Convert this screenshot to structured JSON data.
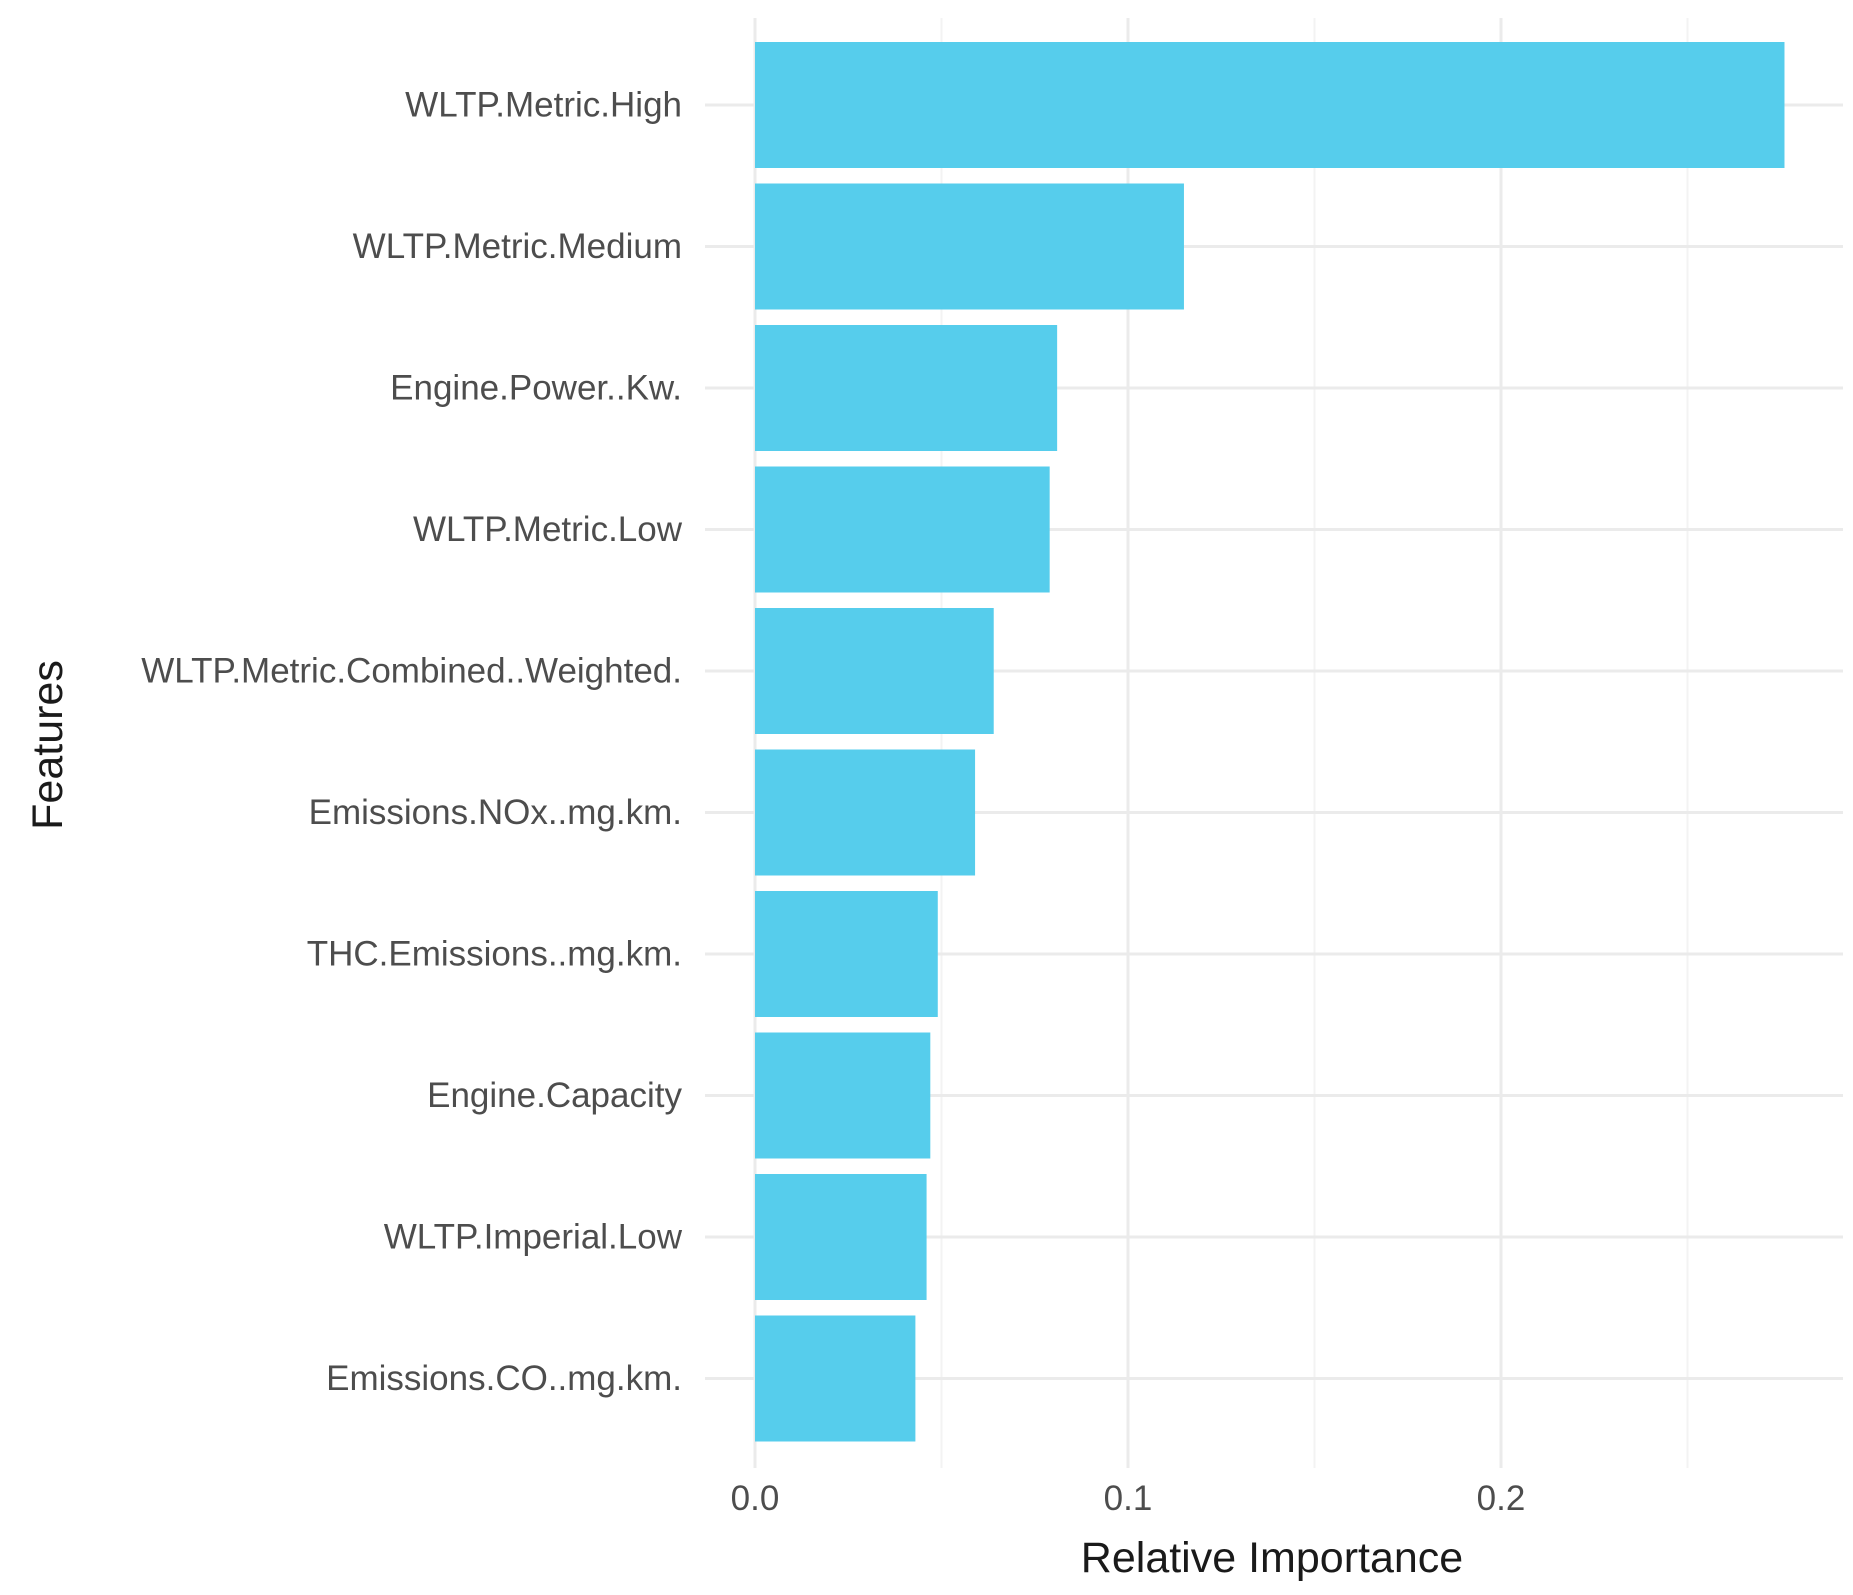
{
  "chart_data": {
    "type": "bar",
    "orientation": "horizontal",
    "title": "",
    "xlabel": "Relative Importance",
    "ylabel": "Features",
    "categories": [
      "WLTP.Metric.High",
      "WLTP.Metric.Medium",
      "Engine.Power..Kw.",
      "WLTP.Metric.Low",
      "WLTP.Metric.Combined..Weighted.",
      "Emissions.NOx..mg.km.",
      "THC.Emissions..mg.km.",
      "Engine.Capacity",
      "WLTP.Imperial.Low",
      "Emissions.CO..mg.km."
    ],
    "values": [
      0.276,
      0.115,
      0.081,
      0.079,
      0.064,
      0.059,
      0.049,
      0.047,
      0.046,
      0.043
    ],
    "xlim": [
      0.0,
      0.29
    ],
    "xticks": [
      0.0,
      0.1,
      0.2
    ],
    "xtick_labels": [
      "0.0",
      "0.1",
      "0.2"
    ],
    "bar_color": "#56CDEC",
    "grid": true,
    "legend": "none"
  }
}
